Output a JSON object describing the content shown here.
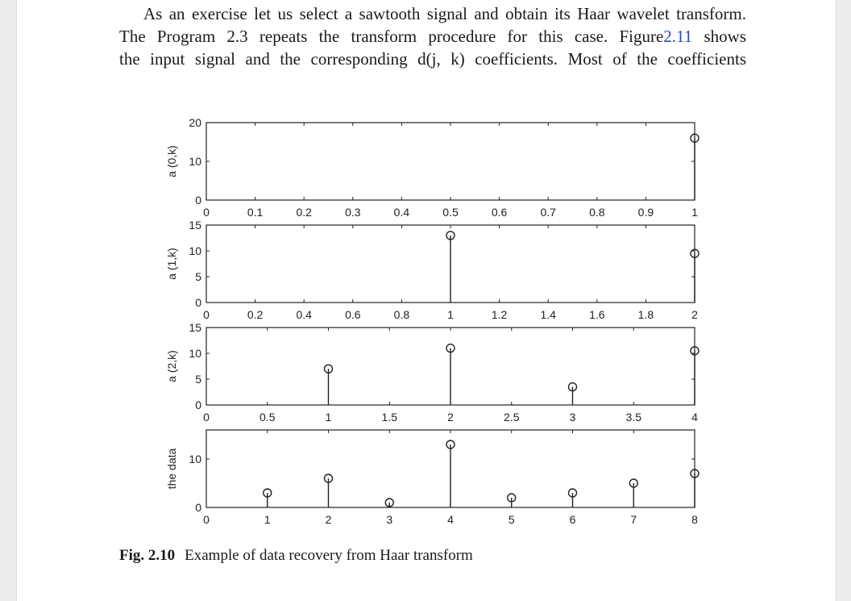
{
  "paragraph": {
    "line1": "As an exercise let us select a sawtooth signal and obtain its Haar wavelet transform.",
    "line2_pre": "The Program 2.3 repeats the transform procedure for this case. Figure",
    "line2_link": "2.11",
    "line2_post": " shows",
    "line3": "the input signal and the corresponding d(j, k) coefficients. Most of the coefficients"
  },
  "caption": {
    "number": "Fig. 2.10",
    "text": "Example of data recovery from Haar transform"
  },
  "chart_data": [
    {
      "type": "stem",
      "ylabel": "a (0,k)",
      "xlim": [
        0,
        1
      ],
      "ylim": [
        0,
        20
      ],
      "xticks": [
        "0",
        "0.1",
        "0.2",
        "0.3",
        "0.4",
        "0.5",
        "0.6",
        "0.7",
        "0.8",
        "0.9",
        "1"
      ],
      "xtick_values": [
        0,
        0.1,
        0.2,
        0.3,
        0.4,
        0.5,
        0.6,
        0.7,
        0.8,
        0.9,
        1
      ],
      "yticks": [
        "0",
        "10",
        "20"
      ],
      "ytick_values": [
        0,
        10,
        20
      ],
      "x": [
        1
      ],
      "y": [
        16
      ]
    },
    {
      "type": "stem",
      "ylabel": "a (1,k)",
      "xlim": [
        0,
        2
      ],
      "ylim": [
        0,
        15
      ],
      "xticks": [
        "0",
        "0.2",
        "0.4",
        "0.6",
        "0.8",
        "1",
        "1.2",
        "1.4",
        "1.6",
        "1.8",
        "2"
      ],
      "xtick_values": [
        0,
        0.2,
        0.4,
        0.6,
        0.8,
        1,
        1.2,
        1.4,
        1.6,
        1.8,
        2
      ],
      "yticks": [
        "0",
        "5",
        "10",
        "15"
      ],
      "ytick_values": [
        0,
        5,
        10,
        15
      ],
      "x": [
        1,
        2
      ],
      "y": [
        13,
        9.5
      ]
    },
    {
      "type": "stem",
      "ylabel": "a (2,k)",
      "xlim": [
        0,
        4
      ],
      "ylim": [
        0,
        15
      ],
      "xticks": [
        "0",
        "0.5",
        "1",
        "1.5",
        "2",
        "2.5",
        "3",
        "3.5",
        "4"
      ],
      "xtick_values": [
        0,
        0.5,
        1,
        1.5,
        2,
        2.5,
        3,
        3.5,
        4
      ],
      "yticks": [
        "0",
        "5",
        "10",
        "15"
      ],
      "ytick_values": [
        0,
        5,
        10,
        15
      ],
      "x": [
        1,
        2,
        3,
        4
      ],
      "y": [
        7,
        11,
        3.5,
        10.5
      ]
    },
    {
      "type": "stem",
      "ylabel": "the data",
      "xlim": [
        0,
        8
      ],
      "ylim": [
        0,
        16
      ],
      "xticks": [
        "0",
        "1",
        "2",
        "3",
        "4",
        "5",
        "6",
        "7",
        "8"
      ],
      "xtick_values": [
        0,
        1,
        2,
        3,
        4,
        5,
        6,
        7,
        8
      ],
      "yticks": [
        "0",
        "10"
      ],
      "ytick_values": [
        0,
        10
      ],
      "x": [
        1,
        2,
        3,
        4,
        5,
        6,
        7,
        8
      ],
      "y": [
        3,
        6,
        1,
        13,
        2,
        3,
        5,
        7
      ]
    }
  ]
}
